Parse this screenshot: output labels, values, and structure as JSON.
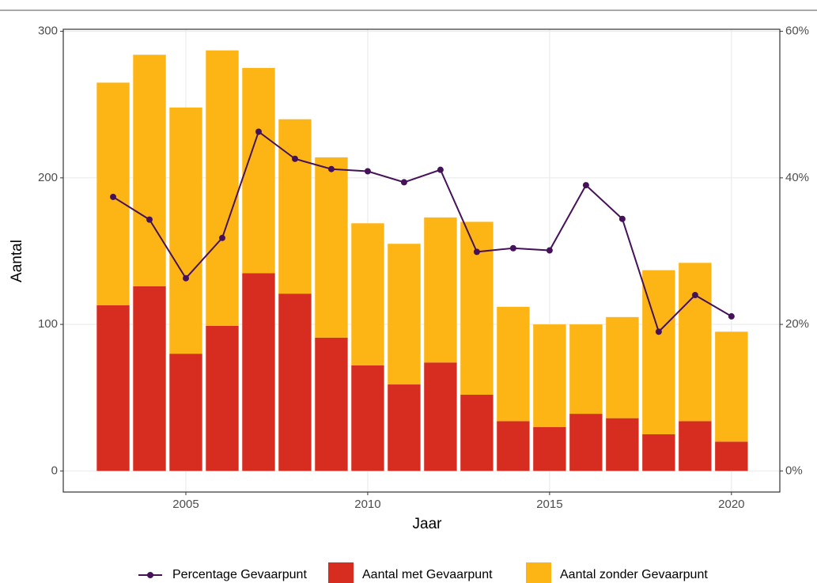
{
  "chart_data": {
    "type": "bar",
    "x": [
      2003,
      2004,
      2005,
      2006,
      2007,
      2008,
      2009,
      2010,
      2011,
      2012,
      2013,
      2014,
      2015,
      2016,
      2017,
      2018,
      2019,
      2020
    ],
    "series": [
      {
        "name": "Percentage Gevaarpunt",
        "type": "line",
        "axis": "y2",
        "color": "#45125a",
        "values": [
          37.4,
          34.3,
          26.3,
          31.8,
          46.3,
          42.6,
          41.2,
          40.9,
          39.4,
          41.1,
          29.9,
          30.4,
          30.1,
          39.0,
          34.4,
          19.0,
          24.0,
          21.1
        ]
      },
      {
        "name": "Aantal met Gevaarpunt",
        "type": "bar",
        "color": "#d62d20",
        "values": [
          113,
          126,
          80,
          99,
          135,
          121,
          91,
          72,
          59,
          74,
          52,
          34,
          30,
          39,
          36,
          25,
          34,
          20
        ]
      },
      {
        "name": "Aantal zonder Gevaarpunt",
        "type": "bar",
        "color": "#fdb515",
        "values": [
          152,
          158,
          168,
          188,
          140,
          119,
          123,
          97,
          96,
          99,
          118,
          78,
          70,
          61,
          69,
          112,
          108,
          75
        ]
      }
    ],
    "xlabel": "Jaar",
    "ylabel": "Aantal",
    "xlim": [
      2001.63,
      2021.33
    ],
    "xticks": [
      2005,
      2010,
      2015,
      2020
    ],
    "ylim": [
      -14.4,
      301.4
    ],
    "yticks": [
      0,
      100,
      200,
      300
    ],
    "y2lim": [
      -2.88,
      60.28
    ],
    "y2ticks": [
      {
        "value": 0,
        "label": "0%"
      },
      {
        "value": 20,
        "label": "20%"
      },
      {
        "value": 40,
        "label": "40%"
      },
      {
        "value": 60,
        "label": "60%"
      }
    ],
    "grid": true,
    "legend": "bottom"
  }
}
